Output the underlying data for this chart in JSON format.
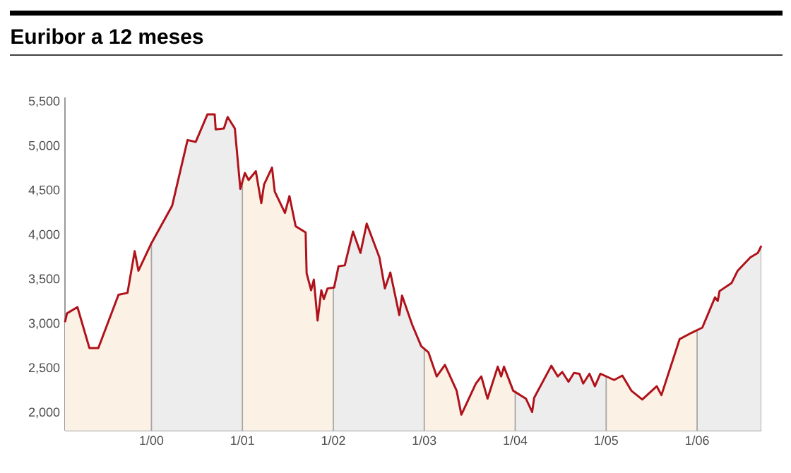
{
  "chart_data": {
    "type": "line",
    "title": "Euribor a 12 meses",
    "color": "#b0121b",
    "x": [
      "1999-01-19",
      "1999-01-27",
      "1999-03-10",
      "1999-04-27",
      "1999-06-02",
      "1999-08-22",
      "1999-09-27",
      "1999-10-26",
      "1999-11-10",
      "2000-01-01",
      "2000-03-24",
      "2000-05-25",
      "2000-06-27",
      "2000-08-13",
      "2000-09-11",
      "2000-09-15",
      "2000-10-18",
      "2000-11-02",
      "2000-12-01",
      "2000-12-23",
      "2001-01-11",
      "2001-01-26",
      "2001-02-24",
      "2001-03-18",
      "2001-03-29",
      "2001-04-30",
      "2001-05-11",
      "2001-06-21",
      "2001-07-09",
      "2001-08-03",
      "2001-09-12",
      "2001-09-16",
      "2001-10-04",
      "2001-10-15",
      "2001-10-30",
      "2001-11-14",
      "2001-11-24",
      "2001-12-09",
      "2002-01-04",
      "2002-01-22",
      "2002-02-16",
      "2002-03-21",
      "2002-04-20",
      "2002-05-15",
      "2002-07-05",
      "2002-07-27",
      "2002-08-18",
      "2002-09-23",
      "2002-10-04",
      "2002-11-14",
      "2002-12-20",
      "2003-01-18",
      "2003-02-20",
      "2003-03-25",
      "2003-05-11",
      "2003-05-30",
      "2003-07-27",
      "2003-08-18",
      "2003-09-12",
      "2003-10-23",
      "2003-11-06",
      "2003-11-17",
      "2003-12-24",
      "2004-02-13",
      "2004-03-09",
      "2004-03-17",
      "2004-05-25",
      "2004-06-20",
      "2004-07-08",
      "2004-08-02",
      "2004-08-24",
      "2004-09-15",
      "2004-09-30",
      "2004-10-25",
      "2004-11-16",
      "2004-12-08",
      "2005-02-02",
      "2005-03-07",
      "2005-04-12",
      "2005-05-26",
      "2005-07-23",
      "2005-08-11",
      "2005-10-23",
      "2005-12-09",
      "2006-01-22",
      "2006-03-14",
      "2006-03-25",
      "2006-04-01",
      "2006-05-19",
      "2006-06-13",
      "2006-08-03",
      "2006-09-02",
      "2006-09-16"
    ],
    "values": [
      3020,
      3120,
      3190,
      2730,
      2730,
      3330,
      3350,
      3820,
      3600,
      3910,
      4330,
      5070,
      5050,
      5360,
      5360,
      5190,
      5200,
      5330,
      5200,
      4520,
      4700,
      4620,
      4720,
      4360,
      4570,
      4760,
      4490,
      4250,
      4440,
      4100,
      4030,
      3570,
      3380,
      3500,
      3040,
      3380,
      3280,
      3400,
      3410,
      3650,
      3660,
      4040,
      3800,
      4130,
      3750,
      3400,
      3580,
      3100,
      3320,
      2990,
      2750,
      2680,
      2410,
      2540,
      2250,
      1980,
      2330,
      2410,
      2160,
      2520,
      2410,
      2520,
      2250,
      2160,
      2010,
      2170,
      2530,
      2410,
      2460,
      2350,
      2450,
      2440,
      2330,
      2440,
      2300,
      2440,
      2370,
      2420,
      2250,
      2150,
      2300,
      2200,
      2830,
      2900,
      2960,
      3300,
      3260,
      3370,
      3460,
      3600,
      3750,
      3800,
      3880
    ],
    "grid": "x",
    "xlim": [
      "1999-01-19",
      "2006-09-16"
    ],
    "ylim": [
      1800,
      5550
    ],
    "xticks": [
      {
        "value": "2000-01-01",
        "label": "1/00"
      },
      {
        "value": "2001-01-01",
        "label": "1/01"
      },
      {
        "value": "2002-01-01",
        "label": "1/02"
      },
      {
        "value": "2003-01-01",
        "label": "1/03"
      },
      {
        "value": "2004-01-01",
        "label": "1/04"
      },
      {
        "value": "2005-01-01",
        "label": "1/05"
      },
      {
        "value": "2006-01-01",
        "label": "1/06"
      }
    ],
    "yticks": [
      {
        "value": 2000,
        "label": "2,000"
      },
      {
        "value": 2500,
        "label": "2,500"
      },
      {
        "value": 3000,
        "label": "3,000"
      },
      {
        "value": 3500,
        "label": "3,500"
      },
      {
        "value": 4000,
        "label": "4,000"
      },
      {
        "value": 4500,
        "label": "4,500"
      },
      {
        "value": 5000,
        "label": "5,000"
      },
      {
        "value": 5500,
        "label": "5,500"
      }
    ],
    "bands": [
      {
        "axis": "x",
        "from": "1999-01-19",
        "to": "2000-01-01",
        "color": "#fbf1e4"
      },
      {
        "axis": "x",
        "from": "2000-01-01",
        "to": "2001-01-01",
        "color": "#ededed"
      },
      {
        "axis": "x",
        "from": "2001-01-01",
        "to": "2002-01-01",
        "color": "#fbf1e4"
      },
      {
        "axis": "x",
        "from": "2002-01-01",
        "to": "2003-01-01",
        "color": "#ededed"
      },
      {
        "axis": "x",
        "from": "2003-01-01",
        "to": "2004-01-01",
        "color": "#fbf1e4"
      },
      {
        "axis": "x",
        "from": "2004-01-01",
        "to": "2005-01-01",
        "color": "#ededed"
      },
      {
        "axis": "x",
        "from": "2005-01-01",
        "to": "2006-01-01",
        "color": "#fbf1e4"
      },
      {
        "axis": "x",
        "from": "2006-01-01",
        "to": "2006-09-16",
        "color": "#ededed"
      }
    ]
  }
}
